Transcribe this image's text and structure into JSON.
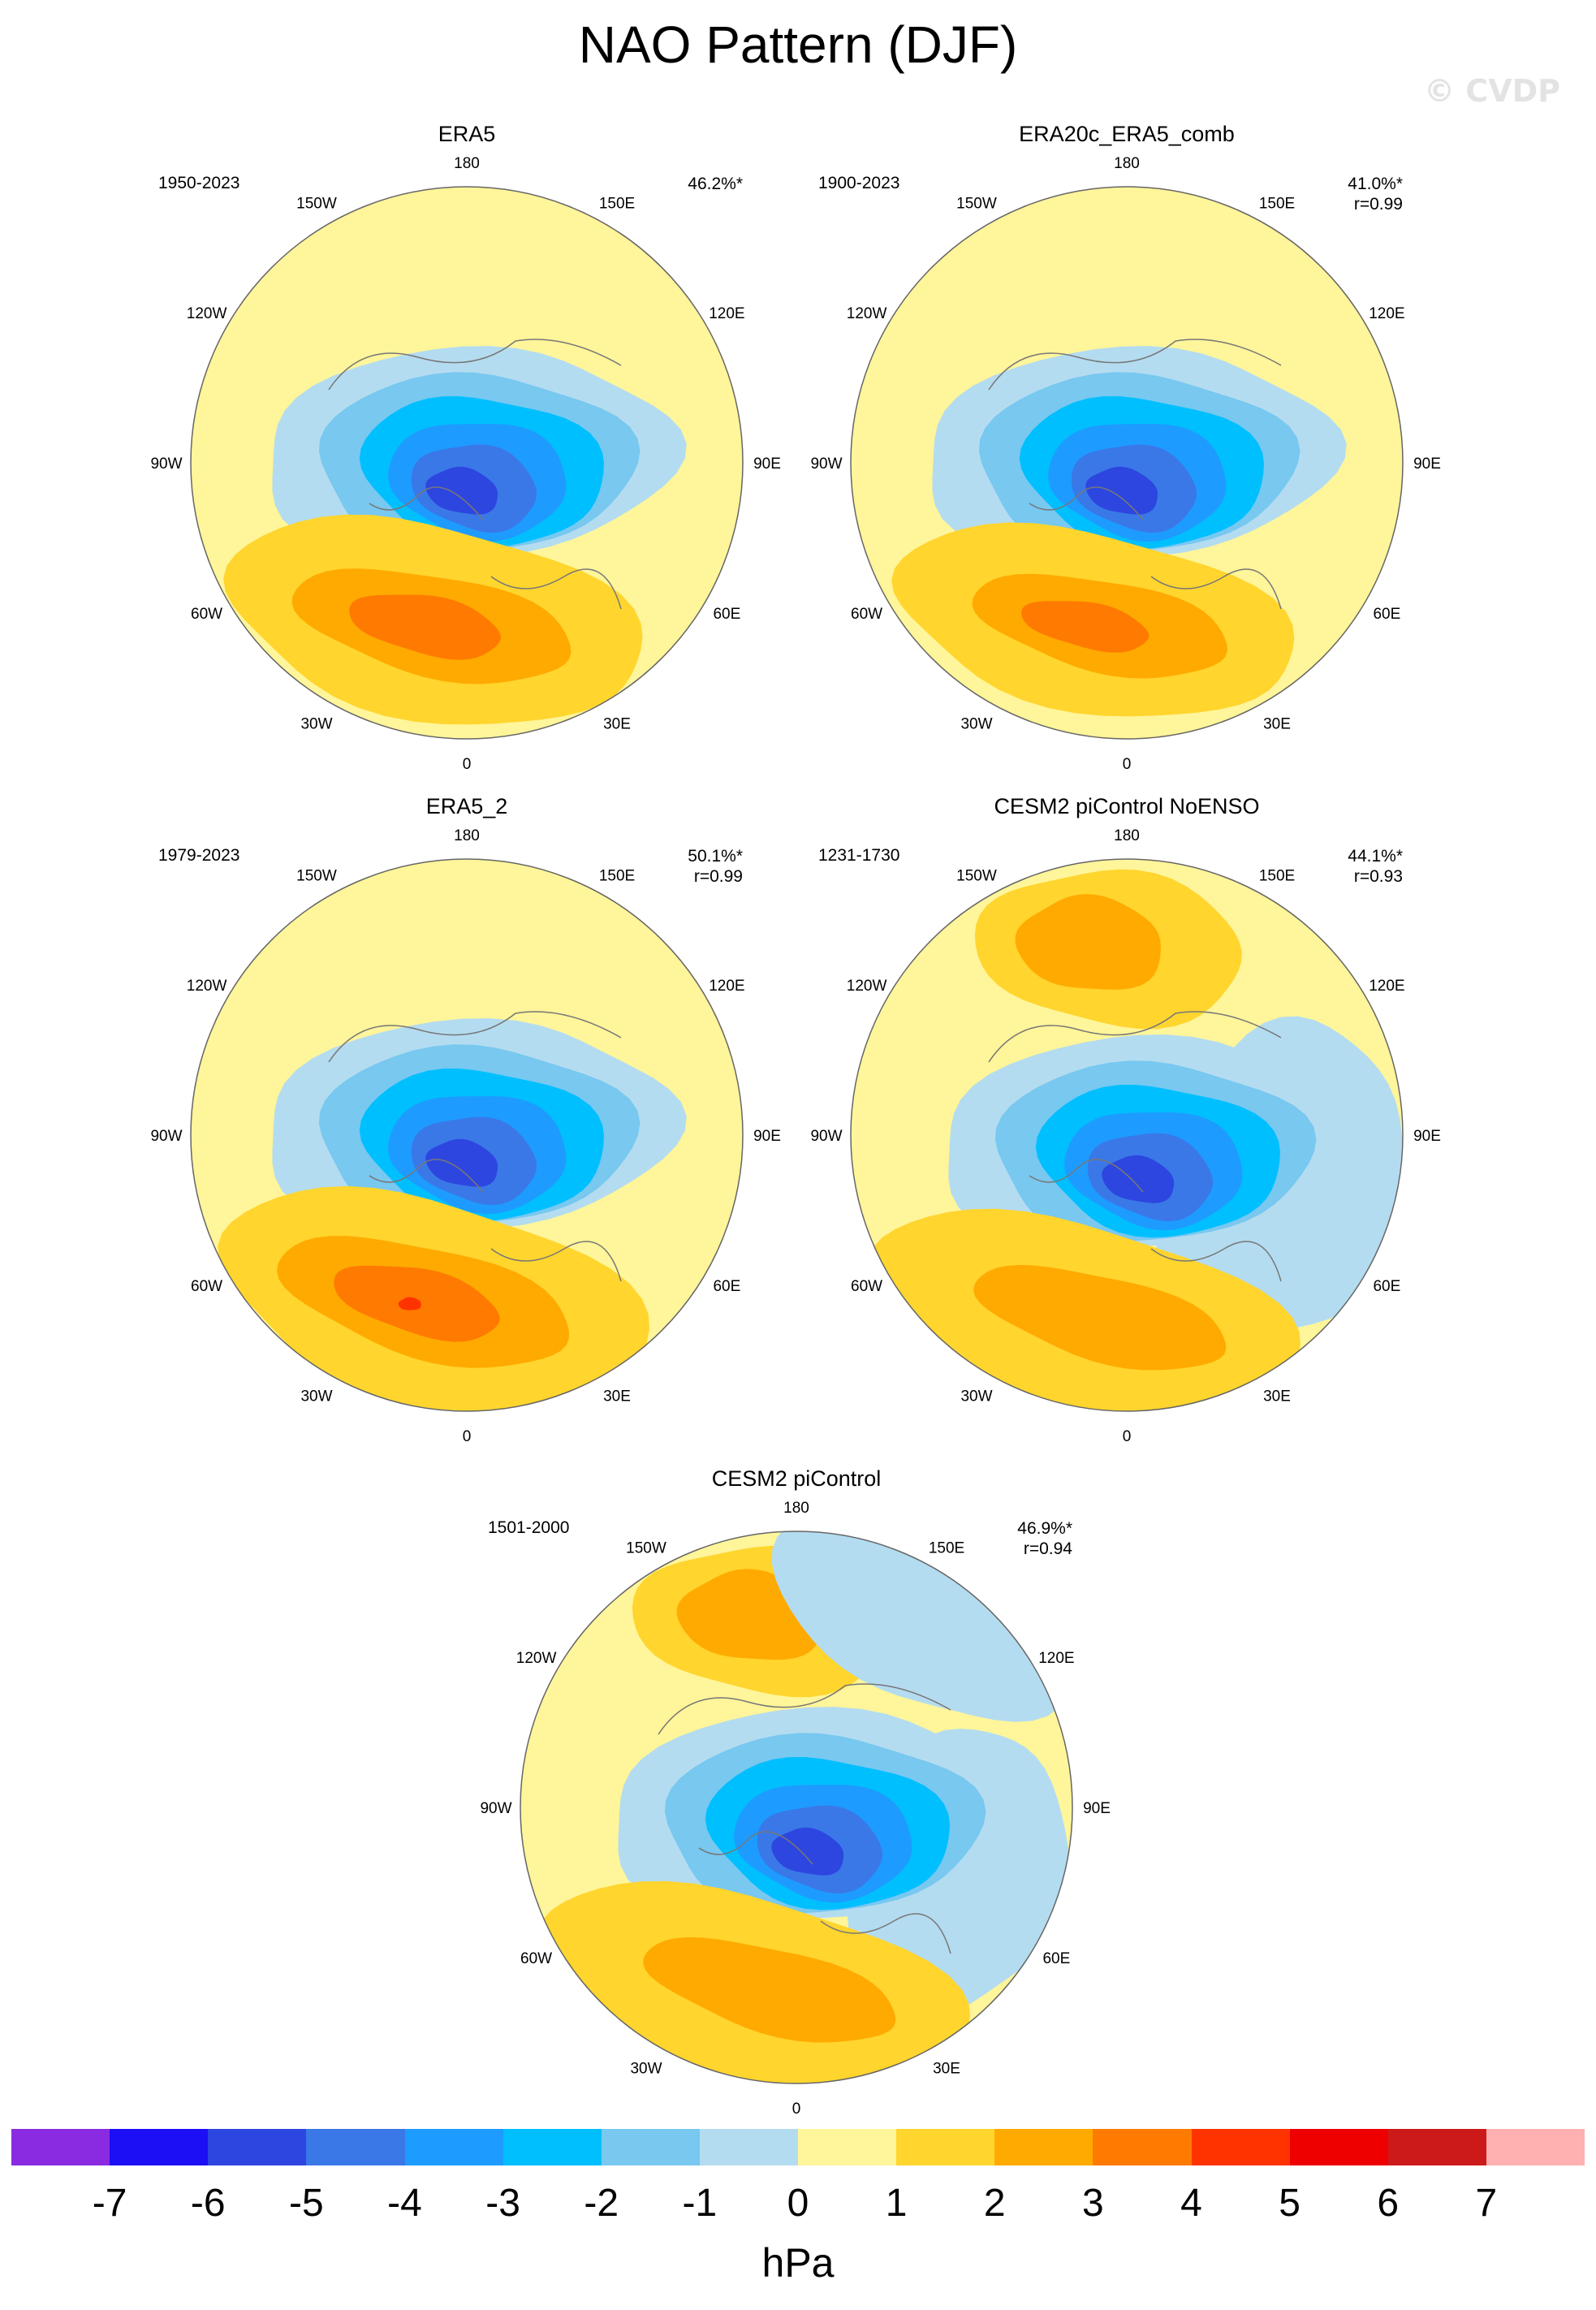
{
  "title": "NAO Pattern (DJF)",
  "watermark": "© CVDP",
  "longitude_labels": [
    "180",
    "150E",
    "120E",
    "90E",
    "60E",
    "30E",
    "0",
    "30W",
    "60W",
    "90W",
    "120W",
    "150W"
  ],
  "panels": [
    {
      "title": "ERA5",
      "period": "1950-2023",
      "variance": "46.2%*",
      "correlation": ""
    },
    {
      "title": "ERA20c_ERA5_comb",
      "period": "1900-2023",
      "variance": "41.0%*",
      "correlation": "r=0.99"
    },
    {
      "title": "ERA5_2",
      "period": "1979-2023",
      "variance": "50.1%*",
      "correlation": "r=0.99"
    },
    {
      "title": "CESM2 piControl NoENSO",
      "period": "1231-1730",
      "variance": "44.1%*",
      "correlation": "r=0.93"
    },
    {
      "title": "CESM2 piControl",
      "period": "1501-2000",
      "variance": "46.9%*",
      "correlation": "r=0.94"
    }
  ],
  "colorbar": {
    "units": "hPa",
    "tick_labels": [
      "-7",
      "-6",
      "-5",
      "-4",
      "-3",
      "-2",
      "-1",
      "0",
      "1",
      "2",
      "3",
      "4",
      "5",
      "6",
      "7"
    ],
    "colors": [
      "#8a2be2",
      "#1c0ef5",
      "#2d46e0",
      "#3a78e8",
      "#1e9bff",
      "#00bfff",
      "#78c8f0",
      "#b4dcf0",
      "#fff59a",
      "#ffd52e",
      "#ffaa00",
      "#ff7a00",
      "#ff3300",
      "#ee0000",
      "#cc1a1a",
      "#ffb0b0"
    ]
  }
}
